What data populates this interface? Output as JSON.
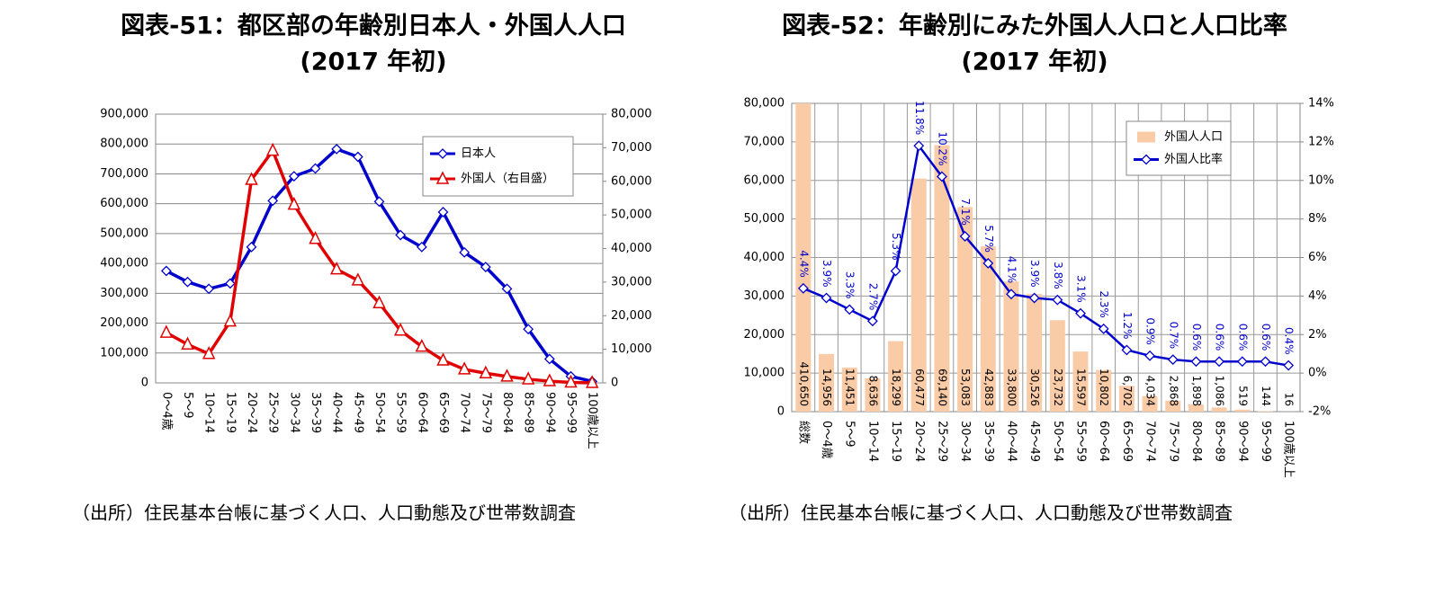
{
  "chart_data": [
    {
      "type": "line",
      "title": "図表-51：都区部の年齢別日本人・外国人人口",
      "subtitle": "(2017 年初)",
      "source": "（出所）住民基本台帳に基づく人口、人口動態及び世帯数調査",
      "categories": [
        "0～4歳",
        "5～9",
        "10～14",
        "15～19",
        "20～24",
        "25～29",
        "30～34",
        "35～39",
        "40～44",
        "45～49",
        "50～54",
        "55～59",
        "60～64",
        "65～69",
        "70～74",
        "75～79",
        "80～84",
        "85～89",
        "90～94",
        "95～99",
        "100歳以上"
      ],
      "series": [
        {
          "name": "日本人",
          "color": "#0000cc",
          "marker": "diamond",
          "values": [
            375000,
            338000,
            315000,
            333000,
            455000,
            610000,
            692000,
            718000,
            783000,
            757000,
            607000,
            495000,
            455000,
            572000,
            437000,
            388000,
            315000,
            180000,
            80000,
            22000,
            5000
          ]
        },
        {
          "name": "外国人（右目盛）",
          "color": "#e00000",
          "marker": "triangle",
          "axis": "y2",
          "values": [
            14956,
            11451,
            8636,
            18299,
            60477,
            69140,
            53083,
            42883,
            33800,
            30526,
            23732,
            15597,
            10802,
            6702,
            4034,
            2868,
            1898,
            1086,
            519,
            144,
            16
          ]
        }
      ],
      "ylim": [
        0,
        900000
      ],
      "yticks": [
        0,
        {
          "value": 100000,
          "label": "100,000"
        },
        {
          "value": 200000,
          "label": "200,000"
        },
        {
          "value": 300000,
          "label": "300,000"
        },
        {
          "value": 400000,
          "label": "400,000"
        },
        {
          "value": 500000,
          "label": "500,000"
        },
        {
          "value": 600000,
          "label": "600,000"
        },
        {
          "value": 700000,
          "label": "700,000"
        },
        {
          "value": 800000,
          "label": "800,000"
        },
        {
          "value": 900000,
          "label": "900,000"
        }
      ],
      "y2lim": [
        0,
        80000
      ],
      "y2ticks": [
        0,
        {
          "value": 10000,
          "label": "10,000"
        },
        {
          "value": 20000,
          "label": "20,000"
        },
        {
          "value": 30000,
          "label": "30,000"
        },
        {
          "value": 40000,
          "label": "40,000"
        },
        {
          "value": 50000,
          "label": "50,000"
        },
        {
          "value": 60000,
          "label": "60,000"
        },
        {
          "value": 70000,
          "label": "70,000"
        },
        {
          "value": 80000,
          "label": "80,000"
        }
      ],
      "grid": true,
      "xgrid": false,
      "legend": "top-right"
    },
    {
      "type": "bar",
      "title": "図表-52：年齢別にみた外国人人口と人口比率",
      "subtitle": "(2017 年初)",
      "source": "（出所）住民基本台帳に基づく人口、人口動態及び世帯数調査",
      "categories": [
        "総数",
        "0～4歳",
        "5～9",
        "10～14",
        "15～19",
        "20～24",
        "25～29",
        "30～34",
        "35～39",
        "40～44",
        "45～49",
        "50～54",
        "55～59",
        "60～64",
        "65～69",
        "70～74",
        "75～79",
        "80～84",
        "85～89",
        "90～94",
        "95～99",
        "100歳以上"
      ],
      "series": [
        {
          "name": "外国人人口",
          "type": "bar",
          "color": "#f9cba6",
          "values": [
            410650,
            14956,
            11451,
            8636,
            18299,
            60477,
            69140,
            53083,
            42883,
            33800,
            30526,
            23732,
            15597,
            10802,
            6702,
            4034,
            2868,
            1898,
            1086,
            519,
            144,
            16
          ],
          "value_labels": [
            "410,650",
            "14,956",
            "11,451",
            "8,636",
            "18,299",
            "60,477",
            "69,140",
            "53,083",
            "42,883",
            "33,800",
            "30,526",
            "23,732",
            "15,597",
            "10,802",
            "6,702",
            "4,034",
            "2,868",
            "1,898",
            "1,086",
            "519",
            "144",
            "16"
          ]
        },
        {
          "name": "外国人比率",
          "type": "line",
          "color": "#0000cc",
          "marker": "diamond",
          "axis": "y2",
          "values": [
            4.4,
            3.9,
            3.3,
            2.7,
            5.3,
            11.8,
            10.2,
            7.1,
            5.7,
            4.1,
            3.9,
            3.8,
            3.1,
            2.3,
            1.2,
            0.9,
            0.7,
            0.6,
            0.6,
            0.6,
            0.6,
            0.4
          ],
          "value_labels": [
            "4.4%",
            "3.9%",
            "3.3%",
            "2.7%",
            "5.3%",
            "11.8%",
            "10.2%",
            "7.1%",
            "5.7%",
            "4.1%",
            "3.9%",
            "3.8%",
            "3.1%",
            "2.3%",
            "1.2%",
            "0.9%",
            "0.7%",
            "0.6%",
            "0.6%",
            "0.6%",
            "0.6%",
            "0.4%"
          ]
        }
      ],
      "ylim": [
        0,
        80000
      ],
      "yticks": [
        0,
        {
          "value": 10000,
          "label": "10,000"
        },
        {
          "value": 20000,
          "label": "20,000"
        },
        {
          "value": 30000,
          "label": "30,000"
        },
        {
          "value": 40000,
          "label": "40,000"
        },
        {
          "value": 50000,
          "label": "50,000"
        },
        {
          "value": 60000,
          "label": "60,000"
        },
        {
          "value": 70000,
          "label": "70,000"
        },
        {
          "value": 80000,
          "label": "80,000"
        }
      ],
      "y2lim": [
        -2,
        14
      ],
      "y2ticks": [
        {
          "value": -2,
          "label": "-2%"
        },
        {
          "value": 0,
          "label": "0%"
        },
        {
          "value": 2,
          "label": "2%"
        },
        {
          "value": 4,
          "label": "4%"
        },
        {
          "value": 6,
          "label": "6%"
        },
        {
          "value": 8,
          "label": "8%"
        },
        {
          "value": 10,
          "label": "10%"
        },
        {
          "value": 12,
          "label": "12%"
        },
        {
          "value": 14,
          "label": "14%"
        }
      ],
      "grid": true,
      "xgrid": true,
      "legend": "top-right"
    }
  ]
}
